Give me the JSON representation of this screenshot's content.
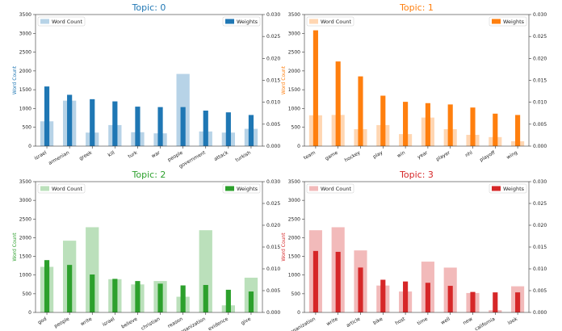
{
  "chart_data": [
    {
      "type": "bar",
      "title": "Topic: 0",
      "color": "#1f77b4",
      "categories": [
        "israel",
        "armenian",
        "greek",
        "kill",
        "turk",
        "war",
        "people",
        "government",
        "attack",
        "turkish"
      ],
      "word_count": [
        660,
        1210,
        360,
        560,
        370,
        340,
        1920,
        390,
        360,
        460
      ],
      "weights": [
        0.0136,
        0.0117,
        0.0107,
        0.0102,
        0.009,
        0.0089,
        0.0089,
        0.0081,
        0.0077,
        0.0071
      ],
      "ylabel_left": "Word Count",
      "ylim_left": [
        0,
        3500
      ],
      "ylim_right": [
        0,
        0.03
      ],
      "yticks_left": [
        "0",
        "500",
        "1000",
        "1500",
        "2000",
        "2500",
        "3000",
        "3500"
      ],
      "yticks_right": [
        "0.000",
        "0.005",
        "0.010",
        "0.015",
        "0.020",
        "0.025",
        "0.030"
      ],
      "legend_left": "Word Count",
      "legend_right": "Weights"
    },
    {
      "type": "bar",
      "title": "Topic: 1",
      "color": "#ff7f0e",
      "categories": [
        "team",
        "game",
        "hockey",
        "play",
        "win",
        "year",
        "player",
        "nhl",
        "playoff",
        "wing"
      ],
      "word_count": [
        820,
        830,
        450,
        560,
        320,
        760,
        450,
        300,
        240,
        130
      ],
      "weights": [
        0.0264,
        0.0193,
        0.0159,
        0.0115,
        0.0101,
        0.0098,
        0.0095,
        0.0088,
        0.0074,
        0.0071
      ],
      "ylabel_left": "Word Count",
      "ylim_left": [
        0,
        3500
      ],
      "ylim_right": [
        0,
        0.03
      ],
      "yticks_left": [
        "0",
        "500",
        "1000",
        "1500",
        "2000",
        "2500",
        "3000",
        "3500"
      ],
      "yticks_right": [
        "0.000",
        "0.005",
        "0.010",
        "0.015",
        "0.020",
        "0.025",
        "0.030"
      ],
      "legend_left": "Word Count",
      "legend_right": "Weights"
    },
    {
      "type": "bar",
      "title": "Topic: 2",
      "color": "#2ca02c",
      "categories": [
        "god",
        "people",
        "write",
        "israel",
        "believe",
        "christian",
        "reason",
        "organization",
        "evidence",
        "give"
      ],
      "word_count": [
        1220,
        1920,
        2280,
        890,
        750,
        840,
        420,
        2200,
        190,
        930
      ],
      "weights": [
        0.012,
        0.0109,
        0.0087,
        0.0077,
        0.0072,
        0.0066,
        0.0062,
        0.0063,
        0.0052,
        0.0048
      ],
      "ylabel_left": "Word Count",
      "ylim_left": [
        0,
        3500
      ],
      "ylim_right": [
        0,
        0.03
      ],
      "yticks_left": [
        "0",
        "500",
        "1000",
        "1500",
        "2000",
        "2500",
        "3000",
        "3500"
      ],
      "yticks_right": [
        "0.000",
        "0.005",
        "0.010",
        "0.015",
        "0.020",
        "0.025",
        "0.030"
      ],
      "legend_left": "Word Count",
      "legend_right": "Weights"
    },
    {
      "type": "bar",
      "title": "Topic: 3",
      "color": "#d62728",
      "categories": [
        "organization",
        "write",
        "article",
        "bike",
        "host",
        "time",
        "well",
        "new",
        "california",
        "look"
      ],
      "word_count": [
        2200,
        2280,
        1660,
        720,
        560,
        1360,
        1200,
        520,
        60,
        700
      ],
      "weights": [
        0.0141,
        0.0139,
        0.0103,
        0.0075,
        0.0071,
        0.0068,
        0.0061,
        0.0047,
        0.0046,
        0.0046
      ],
      "ylabel_left": "Word Count",
      "ylim_left": [
        0,
        3500
      ],
      "ylim_right": [
        0,
        0.03
      ],
      "yticks_left": [
        "0",
        "500",
        "1000",
        "1500",
        "2000",
        "2500",
        "3000",
        "3500"
      ],
      "yticks_right": [
        "0.000",
        "0.005",
        "0.010",
        "0.015",
        "0.020",
        "0.025",
        "0.030"
      ],
      "legend_left": "Word Count",
      "legend_right": "Weights"
    }
  ]
}
